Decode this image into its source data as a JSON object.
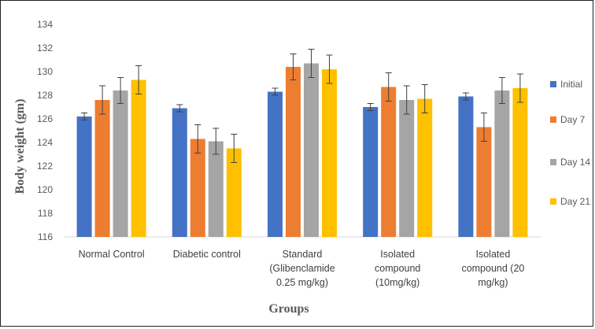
{
  "chart_data": {
    "type": "bar",
    "title": "",
    "xlabel": "Groups",
    "ylabel": "Body weight  (gm)",
    "ylim": [
      116,
      134
    ],
    "yticks": [
      116,
      118,
      120,
      122,
      124,
      126,
      128,
      130,
      132,
      134
    ],
    "grid": false,
    "legend_position": "right",
    "categories": [
      [
        "Normal Control"
      ],
      [
        "Diabetic control"
      ],
      [
        "Standard",
        "(Glibenclamide",
        "0.25 mg/kg)"
      ],
      [
        "Isolated",
        "compound",
        "(10mg/kg)"
      ],
      [
        "Isolated",
        "compound (20",
        "mg/kg)"
      ]
    ],
    "series": [
      {
        "name": "Initial",
        "color": "#4472C4",
        "values": [
          126.2,
          126.9,
          128.3,
          127.0,
          127.9
        ],
        "errors": [
          0.3,
          0.3,
          0.3,
          0.3,
          0.3
        ]
      },
      {
        "name": "Day 7",
        "color": "#ED7D31",
        "values": [
          127.6,
          124.3,
          130.4,
          128.7,
          125.3
        ],
        "errors": [
          1.2,
          1.2,
          1.1,
          1.2,
          1.2
        ]
      },
      {
        "name": "Day 14",
        "color": "#A5A5A5",
        "values": [
          128.4,
          124.1,
          130.7,
          127.6,
          128.4
        ],
        "errors": [
          1.1,
          1.1,
          1.2,
          1.2,
          1.1
        ]
      },
      {
        "name": "Day 21",
        "color": "#FFC000",
        "values": [
          129.3,
          123.5,
          130.2,
          127.7,
          128.6
        ],
        "errors": [
          1.2,
          1.2,
          1.2,
          1.2,
          1.2
        ]
      }
    ]
  }
}
